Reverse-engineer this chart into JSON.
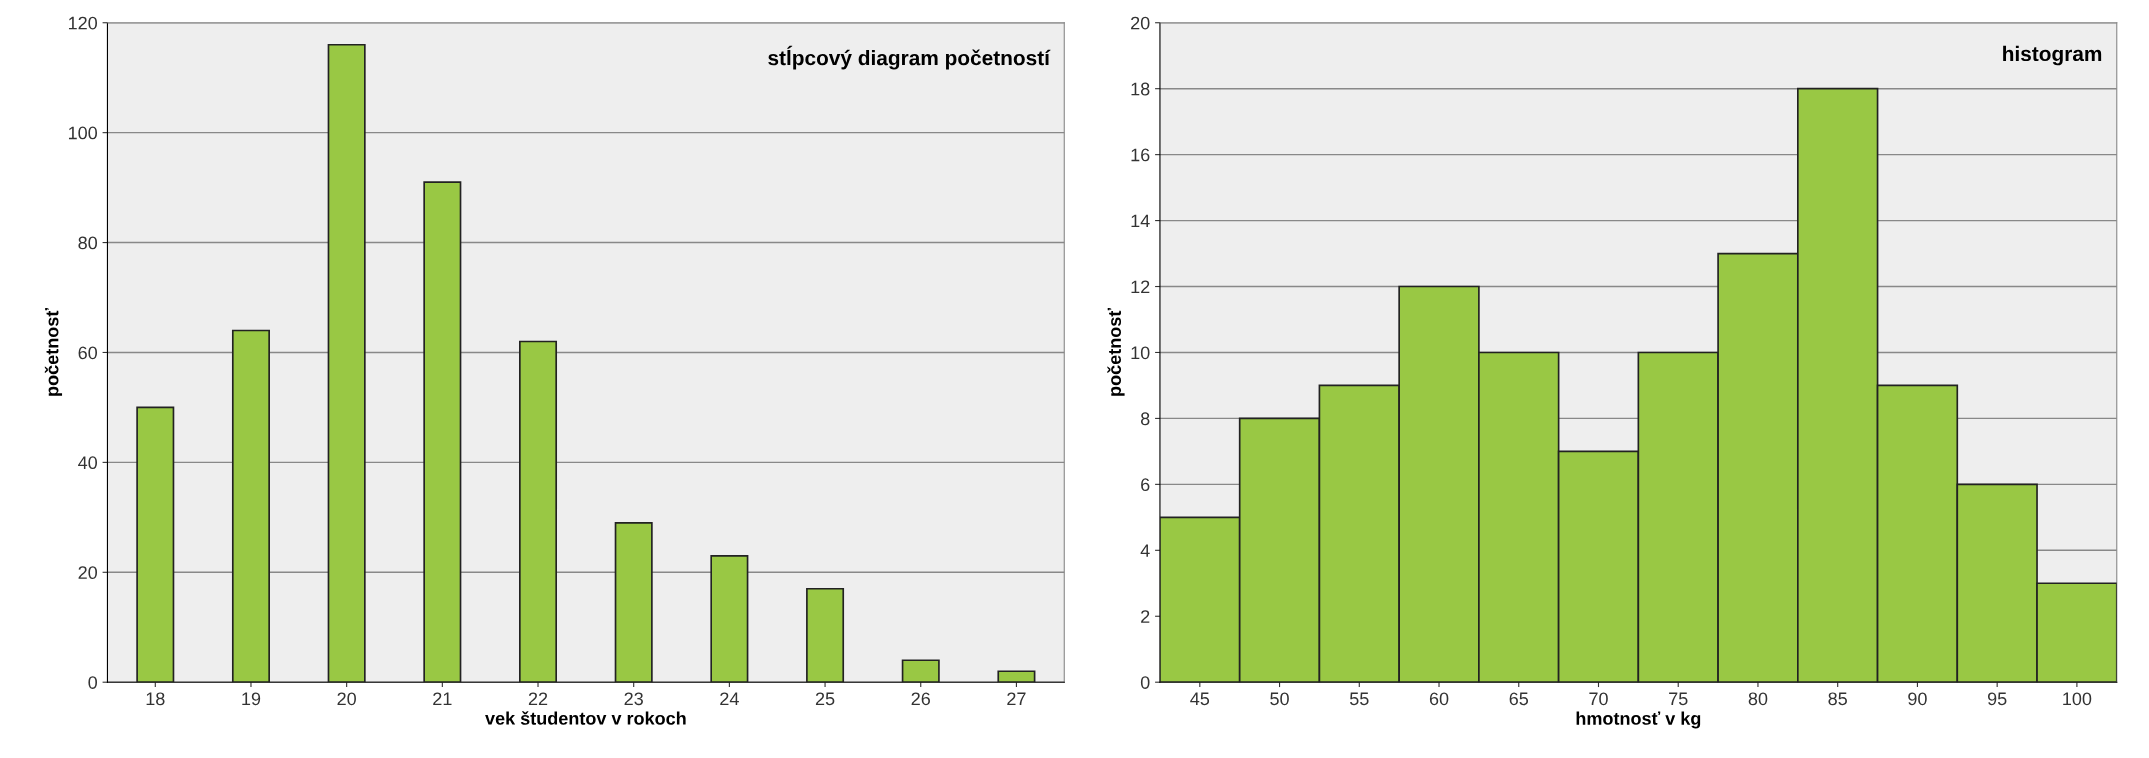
{
  "chart_data": [
    {
      "type": "bar",
      "title": "stĺpcový diagram početností",
      "xlabel": "vek študentov v rokoch",
      "ylabel": "početnosť",
      "categories": [
        "18",
        "19",
        "20",
        "21",
        "22",
        "23",
        "24",
        "25",
        "26",
        "27"
      ],
      "values": [
        50,
        64,
        116,
        91,
        62,
        29,
        23,
        17,
        4,
        2
      ],
      "color": "#99c844",
      "ylim": [
        0,
        120
      ],
      "yticks": [
        0,
        20,
        40,
        60,
        80,
        100,
        120
      ],
      "grid": "y",
      "legend": false
    },
    {
      "type": "histogram",
      "title": "histogram",
      "xlabel": "hmotnosť v kg",
      "ylabel": "početnosť",
      "bins": [
        42.5,
        47.5,
        52.5,
        57.5,
        62.5,
        67.5,
        72.5,
        77.5,
        82.5,
        87.5,
        92.5,
        97.5,
        102.5
      ],
      "values": [
        5,
        8,
        9,
        12,
        10,
        7,
        10,
        13,
        18,
        9,
        6,
        3
      ],
      "color": "#99c844",
      "xlim": [
        42.5,
        102.5
      ],
      "xticks": [
        45,
        50,
        55,
        60,
        65,
        70,
        75,
        80,
        85,
        90,
        95,
        100
      ],
      "ylim": [
        0,
        20
      ],
      "yticks": [
        0,
        2,
        4,
        6,
        8,
        10,
        12,
        14,
        16,
        18,
        20
      ],
      "grid": "y",
      "legend": false
    }
  ]
}
